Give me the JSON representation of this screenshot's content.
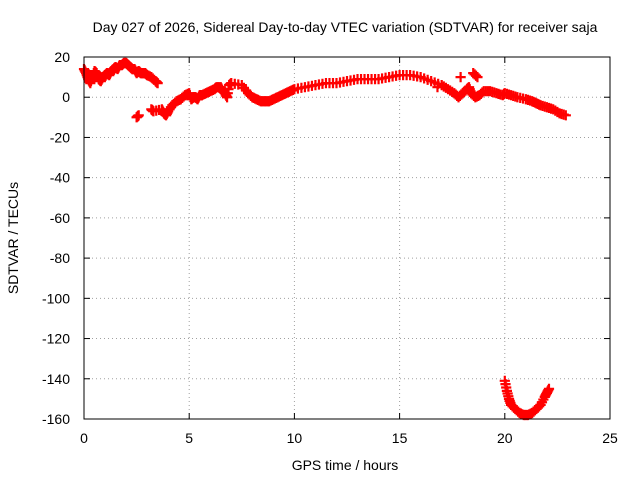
{
  "chart_data": {
    "type": "scatter",
    "title": "Day 027 of 2026, Sidereal Day-to-day VTEC variation (SDTVAR) for receiver saja",
    "xlabel": "GPS time / hours",
    "ylabel": "SDTVAR / TECUs",
    "xlim": [
      0,
      25
    ],
    "ylim": [
      -160,
      20
    ],
    "xticks": [
      "0",
      "5",
      "10",
      "15",
      "20",
      "25"
    ],
    "yticks": [
      "20",
      "0",
      "-20",
      "-40",
      "-60",
      "-80",
      "-100",
      "-120",
      "-140",
      "-160"
    ],
    "grid": true,
    "legend": "none",
    "marker": "plus",
    "color": "#ff0000",
    "series": [
      {
        "points": [
          [
            0.0,
            14
          ],
          [
            0.1,
            12
          ],
          [
            0.2,
            9
          ],
          [
            0.3,
            7
          ],
          [
            0.4,
            10
          ],
          [
            0.5,
            13
          ],
          [
            0.6,
            12
          ],
          [
            0.7,
            9
          ],
          [
            0.8,
            8
          ],
          [
            0.9,
            10
          ],
          [
            1.0,
            11
          ],
          [
            1.1,
            12
          ],
          [
            1.2,
            11
          ],
          [
            1.3,
            13
          ],
          [
            1.4,
            14
          ],
          [
            1.5,
            15
          ],
          [
            1.6,
            14
          ],
          [
            1.7,
            16
          ],
          [
            1.8,
            16
          ],
          [
            1.9,
            17
          ],
          [
            2.0,
            17
          ],
          [
            2.1,
            16
          ],
          [
            2.2,
            15
          ],
          [
            2.3,
            14
          ],
          [
            2.4,
            14
          ],
          [
            2.5,
            12
          ],
          [
            2.6,
            13
          ],
          [
            2.7,
            12
          ],
          [
            2.8,
            12
          ],
          [
            2.9,
            12
          ],
          [
            3.0,
            11
          ],
          [
            3.2,
            10
          ],
          [
            3.4,
            8
          ],
          [
            3.5,
            7
          ],
          [
            2.5,
            -10
          ],
          [
            2.6,
            -9
          ],
          [
            3.2,
            -6
          ],
          [
            3.3,
            -7
          ],
          [
            3.7,
            -6
          ],
          [
            3.8,
            -8
          ],
          [
            3.9,
            -9
          ],
          [
            4.0,
            -7
          ],
          [
            4.2,
            -4
          ],
          [
            4.4,
            -2
          ],
          [
            4.6,
            -1
          ],
          [
            4.8,
            1
          ],
          [
            5.0,
            2
          ],
          [
            5.1,
            -1
          ],
          [
            5.2,
            0
          ],
          [
            5.3,
            0
          ],
          [
            5.4,
            -1
          ],
          [
            5.5,
            1
          ],
          [
            5.6,
            1
          ],
          [
            5.8,
            2
          ],
          [
            6.0,
            3
          ],
          [
            6.2,
            4
          ],
          [
            6.3,
            5
          ],
          [
            6.5,
            5
          ],
          [
            6.6,
            3
          ],
          [
            6.7,
            2
          ],
          [
            6.8,
            0
          ],
          [
            6.9,
            6
          ],
          [
            7.0,
            7
          ],
          [
            7.5,
            6
          ],
          [
            7.8,
            2
          ],
          [
            8.0,
            0
          ],
          [
            8.2,
            -1
          ],
          [
            8.4,
            -2
          ],
          [
            8.6,
            -2
          ],
          [
            8.8,
            -2
          ],
          [
            9.0,
            -1
          ],
          [
            9.2,
            0
          ],
          [
            9.4,
            1
          ],
          [
            9.6,
            2
          ],
          [
            9.8,
            3
          ],
          [
            10.0,
            4
          ],
          [
            10.5,
            5
          ],
          [
            11.0,
            6
          ],
          [
            11.5,
            7
          ],
          [
            12.0,
            7
          ],
          [
            12.5,
            8
          ],
          [
            13.0,
            9
          ],
          [
            13.5,
            9
          ],
          [
            14.0,
            9
          ],
          [
            14.5,
            10
          ],
          [
            15.0,
            11
          ],
          [
            15.5,
            11
          ],
          [
            16.0,
            10
          ],
          [
            16.5,
            8
          ],
          [
            17.0,
            6
          ],
          [
            17.3,
            4
          ],
          [
            17.6,
            2
          ],
          [
            17.8,
            0
          ],
          [
            18.0,
            2
          ],
          [
            18.2,
            4
          ],
          [
            18.3,
            5
          ],
          [
            18.4,
            2
          ],
          [
            18.6,
            0
          ],
          [
            18.8,
            1
          ],
          [
            19.0,
            3
          ],
          [
            19.3,
            3
          ],
          [
            19.6,
            2
          ],
          [
            19.9,
            1
          ],
          [
            20.0,
            2
          ],
          [
            20.3,
            1
          ],
          [
            20.6,
            0
          ],
          [
            21.0,
            -1
          ],
          [
            21.3,
            -2
          ],
          [
            21.5,
            -3
          ],
          [
            21.7,
            -4
          ],
          [
            22.0,
            -5
          ],
          [
            22.3,
            -6
          ],
          [
            22.6,
            -8
          ],
          [
            22.9,
            -9
          ],
          [
            18.7,
            10
          ],
          [
            18.5,
            12
          ],
          [
            17.9,
            10
          ],
          [
            16.8,
            5
          ],
          [
            20.0,
            -141
          ],
          [
            20.1,
            -146
          ],
          [
            20.2,
            -150
          ],
          [
            20.3,
            -153
          ],
          [
            20.5,
            -155
          ],
          [
            20.7,
            -157
          ],
          [
            20.9,
            -158
          ],
          [
            21.1,
            -158
          ],
          [
            21.3,
            -157
          ],
          [
            21.5,
            -155
          ],
          [
            21.7,
            -153
          ],
          [
            21.9,
            -149
          ],
          [
            22.0,
            -147
          ],
          [
            22.1,
            -145
          ]
        ]
      }
    ]
  }
}
